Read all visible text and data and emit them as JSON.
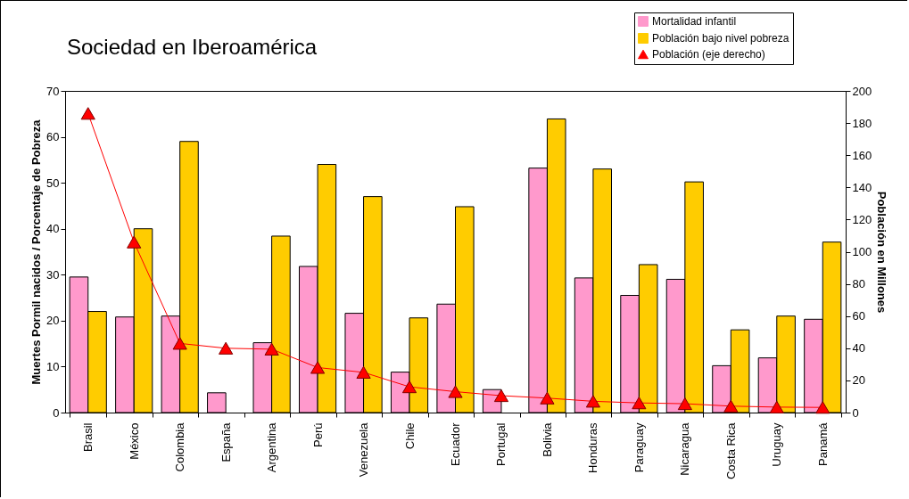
{
  "chart_data": {
    "type": "bar",
    "title": "Sociedad en Iberoamérica",
    "ylabel": "Muertes Pormil nacidos / Porcentaje de Pobreza",
    "y2label": "Población en Millones",
    "categories": [
      "Brasil",
      "México",
      "Colombia",
      "España",
      "Argentina",
      "Perú",
      "Venezuela",
      "Chile",
      "Ecuador",
      "Portugal",
      "Bolivia",
      "Honduras",
      "Paraguay",
      "Nicaragua",
      "Costa Rica",
      "Uruguay",
      "Panamá"
    ],
    "series": [
      {
        "name": "Mortalidad infantil",
        "color": "#ff99cc",
        "values": [
          29.5,
          20.8,
          21,
          4.3,
          15.2,
          31.8,
          21.6,
          8.8,
          23.6,
          5,
          53.2,
          29.3,
          25.5,
          29,
          10.2,
          11.9,
          20.3
        ]
      },
      {
        "name": "Población bajo nivel pobreza",
        "color": "#ffcc00",
        "values": [
          22,
          40,
          59,
          null,
          38.4,
          54,
          47,
          20.6,
          44.8,
          null,
          63.9,
          53,
          32.2,
          50.2,
          18,
          21,
          37.1
        ]
      },
      {
        "name": "Población (eje derecho)",
        "color": "#ff0000",
        "type": "line",
        "axis": "y2",
        "marker": "triangle",
        "values": [
          186,
          106,
          43,
          40,
          39.4,
          28,
          25,
          16,
          13,
          10.5,
          9,
          7,
          6,
          5.5,
          4,
          3.4,
          3.2
        ]
      }
    ],
    "ylim": [
      0,
      70
    ],
    "yticks": [
      0,
      10,
      20,
      30,
      40,
      50,
      60,
      70
    ],
    "y2lim": [
      0,
      200
    ],
    "y2ticks": [
      0,
      20,
      40,
      60,
      80,
      100,
      120,
      140,
      160,
      180,
      200
    ],
    "legend": "top right",
    "grid": false
  }
}
